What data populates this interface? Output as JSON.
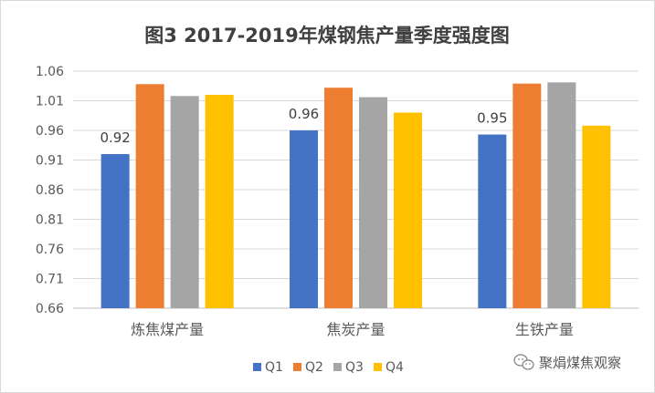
{
  "chart_data": {
    "type": "bar",
    "title": "图3  2017-2019年煤钢焦产量季度强度图",
    "categories": [
      "炼焦煤产量",
      "焦炭产量",
      "生铁产量"
    ],
    "series": [
      {
        "name": "Q1",
        "color": "#4472C4",
        "values": [
          0.92,
          0.96,
          0.953
        ]
      },
      {
        "name": "Q2",
        "color": "#ED7D31",
        "values": [
          1.038,
          1.032,
          1.039
        ]
      },
      {
        "name": "Q3",
        "color": "#A5A5A5",
        "values": [
          1.018,
          1.016,
          1.041
        ]
      },
      {
        "name": "Q4",
        "color": "#FFC000",
        "values": [
          1.02,
          0.99,
          0.968
        ]
      }
    ],
    "data_labels": [
      {
        "series": 0,
        "category": 0,
        "text": "0.92"
      },
      {
        "series": 0,
        "category": 1,
        "text": "0.96"
      },
      {
        "series": 0,
        "category": 2,
        "text": "0.95"
      }
    ],
    "yticks": [
      "0.66",
      "0.71",
      "0.76",
      "0.81",
      "0.86",
      "0.91",
      "0.96",
      "1.01",
      "1.06"
    ],
    "ylim": [
      0.66,
      1.06
    ],
    "grid": true,
    "legend": "bottom",
    "xlabel": "",
    "ylabel": ""
  },
  "watermark": {
    "text": "聚焆煤焦观察",
    "icon": "wechat-icon"
  }
}
